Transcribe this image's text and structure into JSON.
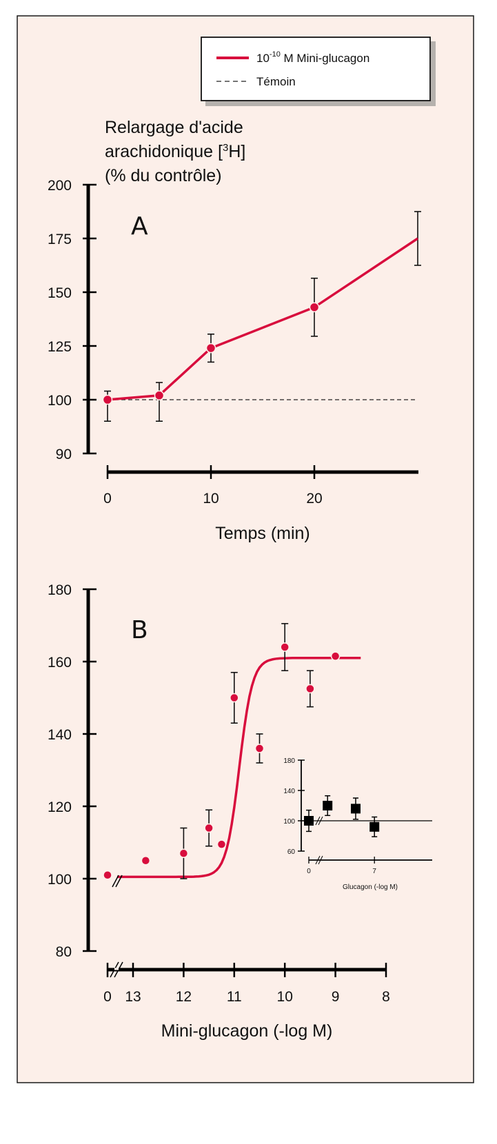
{
  "colors": {
    "series": "#d80d3d",
    "background": "#fcefe9",
    "axis": "#000000"
  },
  "legend": {
    "items": [
      {
        "name": "mini-glucagon",
        "prefix": "10",
        "exponent": "-10",
        "suffix": " M Mini-glucagon",
        "style": "solid",
        "color": "#d80d3d"
      },
      {
        "name": "temoin",
        "label": "Témoin",
        "style": "dashed",
        "color": "#222222"
      }
    ]
  },
  "ylabel": {
    "line1": "Relargage d'acide",
    "line2_pre": "arachidonique [",
    "line2_sup": "3",
    "line2_post": "H]",
    "line3": "(% du contrôle)"
  },
  "chart_data": [
    {
      "panel": "A",
      "type": "line",
      "title": "A",
      "xlabel": "Temps (min)",
      "ylabel": "Relargage d'acide arachidonique [3H] (% du contrôle)",
      "xlim": [
        0,
        30
      ],
      "ylim": [
        90,
        200
      ],
      "y_axis_break": "between 90 and 100",
      "xticks": [
        "0",
        "10",
        "20"
      ],
      "xtick_values": [
        0,
        10,
        20
      ],
      "yticks": [
        "90",
        "100",
        "125",
        "150",
        "175",
        "200"
      ],
      "ytick_values": [
        90,
        100,
        125,
        150,
        175,
        200
      ],
      "series": [
        {
          "name": "10^-10 M Mini-glucagon",
          "x": [
            0,
            5,
            10,
            20,
            30
          ],
          "y": [
            100,
            102,
            124,
            143,
            175
          ],
          "err": [
            4,
            6,
            6.5,
            13.5,
            12.5
          ],
          "markers": [
            true,
            true,
            true,
            true,
            false
          ]
        },
        {
          "name": "Témoin",
          "x": [
            0,
            30
          ],
          "y": [
            100,
            100
          ],
          "style": "dashed"
        }
      ]
    },
    {
      "panel": "B",
      "type": "scatter",
      "title": "B",
      "xlabel": "Mini-glucagon (-log M)",
      "ylabel": "Relargage d'acide arachidonique [3H] (% du contrôle)",
      "ylim": [
        80,
        180
      ],
      "x_axis_break": "between 0 and 13",
      "xticks": [
        "0",
        "13",
        "12",
        "11",
        "10",
        "9",
        "8"
      ],
      "yticks": [
        "80",
        "100",
        "120",
        "140",
        "160",
        "180"
      ],
      "ytick_values": [
        80,
        100,
        120,
        140,
        160,
        180
      ],
      "series": [
        {
          "name": "Mini-glucagon",
          "x": [
            0,
            12.75,
            12,
            11.5,
            11.25,
            11,
            10.5,
            10,
            9.5,
            9
          ],
          "y": [
            101,
            105,
            107,
            114,
            109.5,
            150,
            136,
            164,
            152.5,
            161.5
          ],
          "err": [
            0,
            0,
            7,
            5,
            0,
            7,
            4,
            6.5,
            5,
            0
          ]
        }
      ],
      "fit_curve": {
        "type": "sigmoid",
        "bottom": 100.5,
        "top": 161,
        "ec50_neglog": 10.9,
        "x_range": [
          13,
          8.5
        ]
      },
      "inset": {
        "type": "scatter",
        "xlabel": "Glucagon (-log M)",
        "xticks": [
          "0",
          "7"
        ],
        "xtick_values": [
          0,
          7
        ],
        "yticks": [
          "60",
          "100",
          "140",
          "180"
        ],
        "ytick_values": [
          60,
          100,
          140,
          180
        ],
        "ylim": [
          60,
          180
        ],
        "x_axis_break": "between 0 and 1",
        "reference_line": 100,
        "series": [
          {
            "name": "Glucagon",
            "x": [
              0,
              2,
              5,
              7
            ],
            "y": [
              100,
              120,
              116,
              92
            ],
            "err": [
              14,
              13,
              14,
              13
            ]
          }
        ]
      }
    }
  ]
}
